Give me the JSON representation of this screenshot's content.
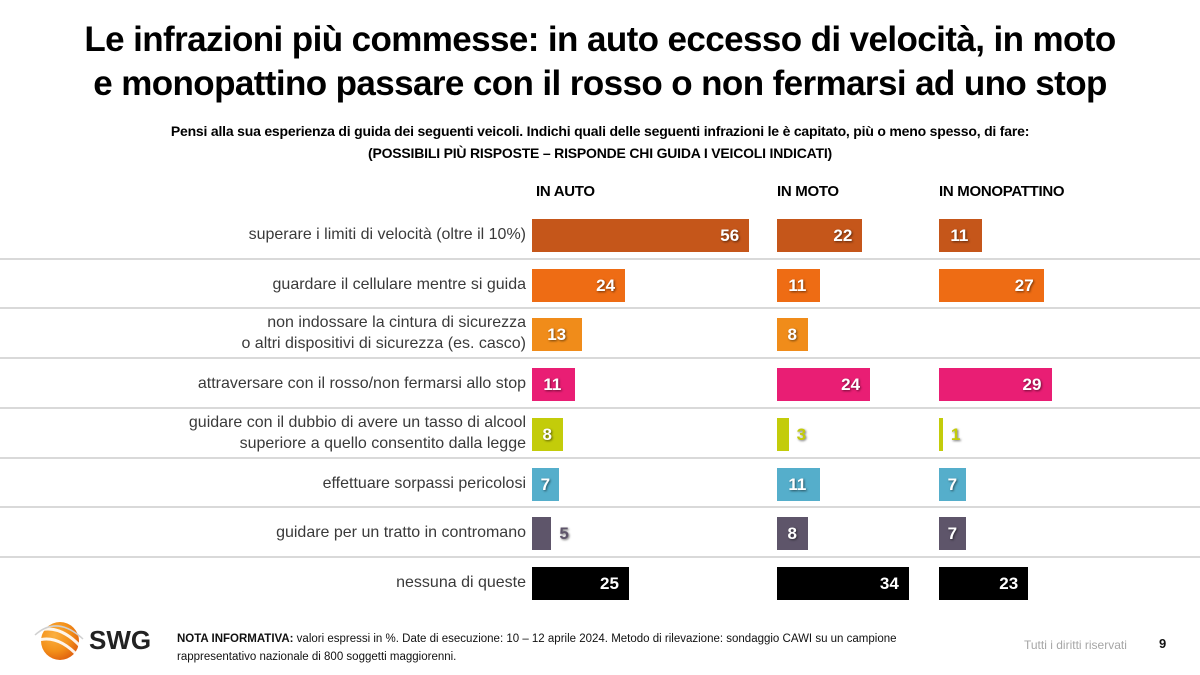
{
  "title_line1": "Le infrazioni più commesse: in auto eccesso di velocità, in moto",
  "title_line2": "e monopattino passare con il rosso o non fermarsi ad uno stop",
  "subtitle_line1": "Pensi alla sua esperienza di guida dei seguenti veicoli. Indichi quali delle seguenti infrazioni le è capitato, più o meno spesso, di fare:",
  "subtitle_line2": "(POSSIBILI PIÙ RISPOSTE – RISPONDE CHI GUIDA I VEICOLI INDICATI)",
  "chart_data": {
    "type": "bar",
    "orientation": "horizontal",
    "title": "Le infrazioni più commesse: in auto eccesso di velocità, in moto e monopattino passare con il rosso o non fermarsi ad uno stop",
    "unit": "%",
    "columns": [
      "IN AUTO",
      "IN MOTO",
      "IN MONOPATTINO"
    ],
    "categories": [
      "superare i limiti di velocità (oltre il 10%)",
      "guardare il cellulare mentre si guida",
      "non indossare la cintura di sicurezza\no altri dispositivi di sicurezza (es. casco)",
      "attraversare con il rosso/non fermarsi allo stop",
      "guidare con il dubbio di avere un tasso di alcool\nsuperiore a quello consentito dalla legge",
      "effettuare sorpassi pericolosi",
      "guidare per un tratto in contromano",
      "nessuna di queste"
    ],
    "category_colors": [
      "#c5561a",
      "#ee6c14",
      "#f08c1a",
      "#e91e74",
      "#c3cc0a",
      "#55aecb",
      "#5e556a",
      "#000000"
    ],
    "series": [
      {
        "name": "IN AUTO",
        "values": [
          56,
          24,
          13,
          11,
          8,
          7,
          5,
          25
        ]
      },
      {
        "name": "IN MOTO",
        "values": [
          22,
          11,
          8,
          24,
          3,
          11,
          8,
          34
        ]
      },
      {
        "name": "IN MONOPATTINO",
        "values": [
          11,
          27,
          null,
          29,
          1,
          7,
          7,
          23
        ]
      }
    ]
  },
  "footer": {
    "logo_text": "SWG",
    "note_bold": "NOTA INFORMATIVA:",
    "note_text": " valori espressi in %. Date di esecuzione: 10 – 12 aprile 2024. Metodo di rilevazione: sondaggio CAWI su un campione rappresentativo nazionale di 800 soggetti maggiorenni.",
    "rights": "Tutti i diritti riservati",
    "page_number": "9"
  }
}
